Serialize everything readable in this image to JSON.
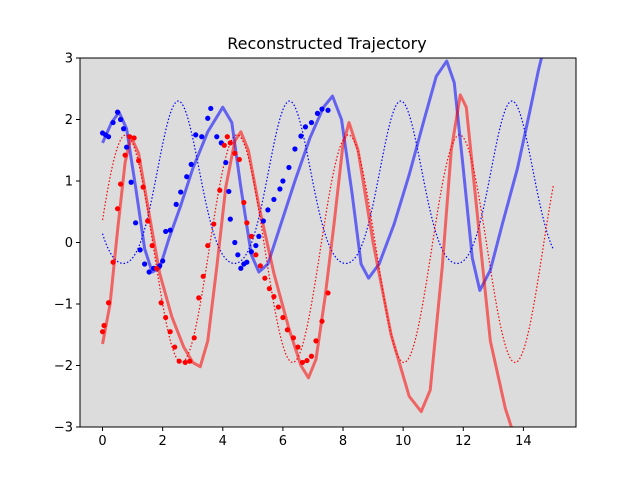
{
  "chart_data": {
    "type": "line",
    "title": "Reconstructed Trajectory",
    "xlabel": "",
    "ylabel": "",
    "xlim": [
      -0.75,
      15.75
    ],
    "ylim": [
      -3,
      3
    ],
    "xticks": [
      0,
      2,
      4,
      6,
      8,
      10,
      12,
      14
    ],
    "yticks": [
      -3,
      -2,
      -1,
      0,
      1,
      2,
      3
    ],
    "background": "#dcdcdc",
    "grid": false,
    "legend": "none",
    "series": [
      {
        "kind": "observed-points",
        "color": "#0000ff",
        "x": [
          0.0,
          0.1,
          0.2,
          0.35,
          0.5,
          0.6,
          0.7,
          0.8,
          0.95,
          1.1,
          1.25,
          1.4,
          1.55,
          1.7,
          1.9,
          2.0,
          2.1,
          2.25,
          2.45,
          2.6,
          2.8,
          2.95,
          3.1,
          3.3,
          3.5,
          3.6,
          3.8,
          3.95,
          4.1,
          4.2,
          4.25,
          4.4,
          4.5,
          4.6,
          4.7,
          4.8,
          4.95,
          5.1,
          5.2,
          5.35,
          5.5,
          5.7,
          5.9,
          6.0,
          6.2,
          6.4,
          6.6,
          6.75,
          6.95,
          7.15,
          7.3,
          7.5
        ],
        "y": [
          1.78,
          1.75,
          1.72,
          1.95,
          2.12,
          2.0,
          1.85,
          1.55,
          0.98,
          0.32,
          -0.12,
          -0.35,
          -0.48,
          -0.42,
          -0.38,
          -0.3,
          0.18,
          0.2,
          0.62,
          0.82,
          1.07,
          1.27,
          1.75,
          1.72,
          2.02,
          2.18,
          1.72,
          1.62,
          1.3,
          0.83,
          0.38,
          0.0,
          -0.2,
          -0.42,
          -0.35,
          -0.32,
          -0.15,
          -0.05,
          0.1,
          0.35,
          0.53,
          0.7,
          0.87,
          1.0,
          1.22,
          1.52,
          1.73,
          1.88,
          1.95,
          2.1,
          2.17,
          2.15
        ]
      },
      {
        "kind": "observed-points",
        "color": "#ff0000",
        "x": [
          0.0,
          0.05,
          0.2,
          0.35,
          0.5,
          0.6,
          0.75,
          0.9,
          1.05,
          1.2,
          1.35,
          1.5,
          1.65,
          1.8,
          1.95,
          2.1,
          2.25,
          2.4,
          2.55,
          2.75,
          2.9,
          3.05,
          3.2,
          3.35,
          3.5,
          3.7,
          3.9,
          4.05,
          4.15,
          4.25,
          4.4,
          4.55,
          4.7,
          4.8,
          4.95,
          5.1,
          5.25,
          5.4,
          5.55,
          5.7,
          5.85,
          6.0,
          6.15,
          6.35,
          6.5,
          6.65,
          6.8,
          6.95,
          7.1,
          7.3,
          7.5
        ],
        "y": [
          -1.45,
          -1.35,
          -0.98,
          -0.32,
          0.55,
          0.95,
          1.42,
          1.72,
          1.7,
          1.33,
          0.9,
          0.35,
          -0.05,
          -0.42,
          -0.98,
          -1.22,
          -1.45,
          -1.7,
          -1.93,
          -1.95,
          -1.93,
          -1.55,
          -0.9,
          -0.55,
          -0.05,
          0.3,
          0.85,
          1.58,
          1.72,
          1.62,
          1.45,
          1.35,
          0.65,
          0.32,
          0.1,
          -0.2,
          -0.38,
          -0.58,
          -0.75,
          -0.88,
          -1.05,
          -1.22,
          -1.42,
          -1.55,
          -1.7,
          -1.95,
          -1.92,
          -1.85,
          -1.6,
          -1.28,
          -0.82
        ]
      }
    ]
  }
}
